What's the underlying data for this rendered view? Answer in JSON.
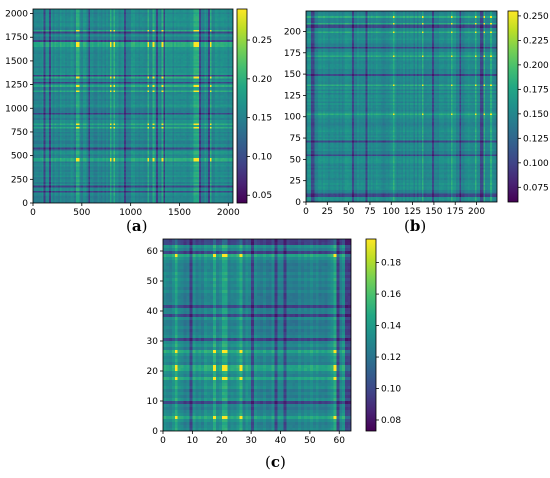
{
  "chart_data": [
    {
      "type": "heatmap",
      "panel": "(a)",
      "panel_letter": "a",
      "grid_size": 2048,
      "colormap": "viridis",
      "xlim": [
        0,
        2048
      ],
      "ylim": [
        0,
        2048
      ],
      "x_ticks": [
        "0",
        "500",
        "1000",
        "1500",
        "2000"
      ],
      "x_tick_values": [
        0,
        500,
        1000,
        1500,
        2000
      ],
      "y_ticks": [
        "0",
        "250",
        "500",
        "750",
        "1000",
        "1250",
        "1500",
        "1750",
        "2000"
      ],
      "y_tick_values": [
        0,
        250,
        500,
        750,
        1000,
        1250,
        1500,
        1750,
        2000
      ],
      "colorbar_range": [
        0.04,
        0.29
      ],
      "colorbar_ticks": [
        "0.05",
        "0.10",
        "0.15",
        "0.20",
        "0.25"
      ],
      "colorbar_tick_values": [
        0.05,
        0.1,
        0.15,
        0.2,
        0.25
      ],
      "grid": false
    },
    {
      "type": "heatmap",
      "panel": "(b)",
      "panel_letter": "b",
      "grid_size": 224,
      "colormap": "viridis",
      "xlim": [
        0,
        224
      ],
      "ylim": [
        0,
        224
      ],
      "x_ticks": [
        "0",
        "25",
        "50",
        "75",
        "100",
        "125",
        "150",
        "175",
        "200"
      ],
      "x_tick_values": [
        0,
        25,
        50,
        75,
        100,
        125,
        150,
        175,
        200
      ],
      "y_ticks": [
        "0",
        "25",
        "50",
        "75",
        "100",
        "125",
        "150",
        "175",
        "200"
      ],
      "y_tick_values": [
        0,
        25,
        50,
        75,
        100,
        125,
        150,
        175,
        200
      ],
      "colorbar_range": [
        0.06,
        0.255
      ],
      "colorbar_ticks": [
        "0.075",
        "0.100",
        "0.125",
        "0.150",
        "0.175",
        "0.200",
        "0.225",
        "0.250"
      ],
      "colorbar_tick_values": [
        0.075,
        0.1,
        0.125,
        0.15,
        0.175,
        0.2,
        0.225,
        0.25
      ],
      "grid": false
    },
    {
      "type": "heatmap",
      "panel": "(c)",
      "panel_letter": "c",
      "grid_size": 64,
      "colormap": "viridis",
      "xlim": [
        0,
        64
      ],
      "ylim": [
        0,
        64
      ],
      "x_ticks": [
        "0",
        "10",
        "20",
        "30",
        "40",
        "50",
        "60"
      ],
      "x_tick_values": [
        0,
        10,
        20,
        30,
        40,
        50,
        60
      ],
      "y_ticks": [
        "0",
        "10",
        "20",
        "30",
        "40",
        "50",
        "60"
      ],
      "y_tick_values": [
        0,
        10,
        20,
        30,
        40,
        50,
        60
      ],
      "colorbar_range": [
        0.073,
        0.195
      ],
      "colorbar_ticks": [
        "0.08",
        "0.10",
        "0.12",
        "0.14",
        "0.16",
        "0.18"
      ],
      "colorbar_tick_values": [
        0.08,
        0.1,
        0.12,
        0.14,
        0.16,
        0.18
      ],
      "grid": false
    }
  ]
}
